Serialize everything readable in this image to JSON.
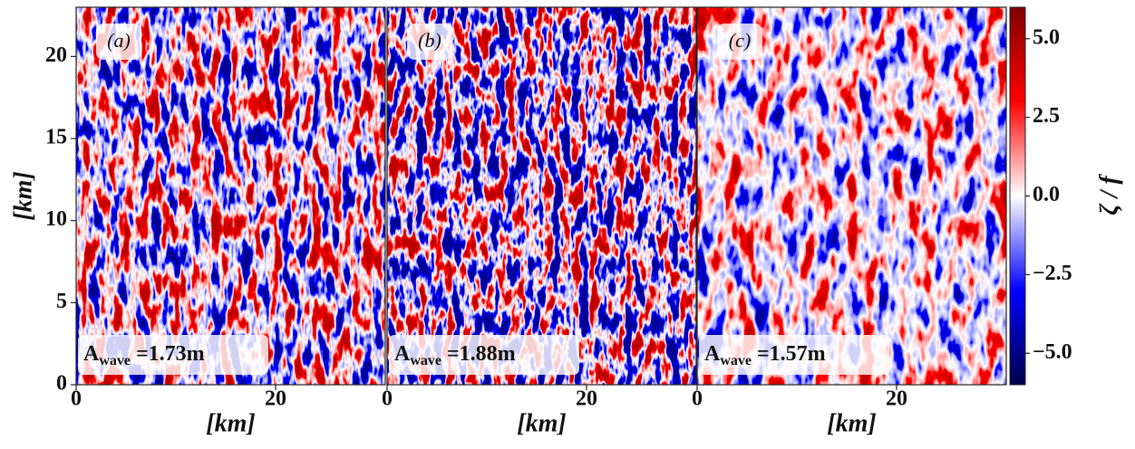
{
  "chart_data": {
    "type": "heatmap",
    "xlabel": "[km]",
    "ylabel": "[km]",
    "xlim": [
      0,
      31
    ],
    "ylim": [
      0,
      23
    ],
    "xticks": [
      0,
      20
    ],
    "yticks": [
      0,
      5,
      10,
      15,
      20
    ],
    "panels": [
      {
        "label": "(a)",
        "annotation": {
          "symbol": "A",
          "subscript": "wave",
          "text": "=1.73m"
        }
      },
      {
        "label": "(b)",
        "annotation": {
          "symbol": "A",
          "subscript": "wave",
          "text": "=1.88m"
        }
      },
      {
        "label": "(c)",
        "annotation": {
          "symbol": "A",
          "subscript": "wave",
          "text": "=1.57m"
        }
      }
    ],
    "colorbar": {
      "label": "ζ / f",
      "lim": [
        -6,
        6
      ],
      "ticks": [
        {
          "value": 5,
          "label": "5.0"
        },
        {
          "value": 2.5,
          "label": "2.5"
        },
        {
          "value": 0,
          "label": "0.0"
        },
        {
          "value": -2.5,
          "label": "−2.5"
        },
        {
          "value": -5,
          "label": "−5.0"
        }
      ]
    }
  }
}
